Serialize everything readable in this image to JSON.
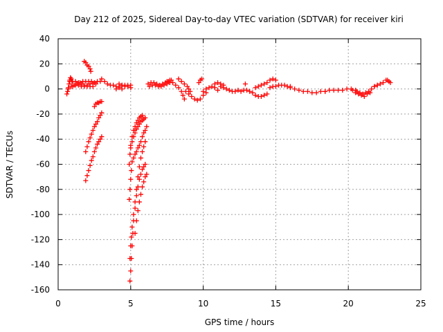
{
  "chart_data": {
    "type": "scatter",
    "title": "Day 212 of 2025, Sidereal Day-to-day VTEC variation (SDTVAR) for receiver kiri",
    "xlabel": "GPS time / hours",
    "ylabel": "SDTVAR / TECUs",
    "xlim": [
      0,
      25
    ],
    "ylim": [
      -160,
      40
    ],
    "xticks": [
      0,
      5,
      10,
      15,
      20,
      25
    ],
    "yticks": [
      -160,
      -140,
      -120,
      -100,
      -80,
      -60,
      -40,
      -20,
      0,
      20,
      40
    ],
    "grid": true,
    "marker": "plus",
    "color": "#ff0000",
    "series": [
      {
        "values": [
          [
            0.6,
            -4
          ],
          [
            0.65,
            -2
          ],
          [
            0.7,
            1
          ],
          [
            0.75,
            4
          ],
          [
            0.8,
            7
          ],
          [
            0.85,
            9
          ],
          [
            0.9,
            8
          ],
          [
            0.95,
            6
          ]
        ]
      },
      {
        "values": [
          [
            0.7,
            0
          ],
          [
            0.9,
            2
          ],
          [
            1.1,
            3
          ],
          [
            1.3,
            4
          ],
          [
            1.5,
            5
          ],
          [
            1.7,
            6
          ],
          [
            1.9,
            6
          ],
          [
            2.1,
            6
          ],
          [
            2.3,
            6
          ],
          [
            2.5,
            5
          ],
          [
            2.7,
            6
          ],
          [
            2.9,
            6
          ]
        ]
      },
      {
        "values": [
          [
            0.8,
            6
          ],
          [
            1.0,
            6
          ],
          [
            1.2,
            6
          ],
          [
            1.4,
            5
          ],
          [
            1.6,
            4
          ],
          [
            1.8,
            3
          ],
          [
            2.0,
            3
          ],
          [
            2.2,
            4
          ],
          [
            2.4,
            4
          ],
          [
            2.6,
            4
          ]
        ]
      },
      {
        "values": [
          [
            1.0,
            2
          ],
          [
            1.2,
            3
          ],
          [
            1.4,
            3
          ],
          [
            1.6,
            2
          ],
          [
            1.8,
            2
          ],
          [
            2.0,
            2
          ],
          [
            2.2,
            2
          ],
          [
            2.4,
            2
          ]
        ]
      },
      {
        "values": [
          [
            1.8,
            22
          ],
          [
            1.9,
            21
          ],
          [
            2.0,
            19
          ],
          [
            2.1,
            18
          ],
          [
            2.2,
            16
          ],
          [
            2.25,
            14
          ]
        ]
      },
      {
        "values": [
          [
            2.5,
            -14
          ],
          [
            2.6,
            -12
          ],
          [
            2.7,
            -11
          ],
          [
            2.8,
            -11
          ],
          [
            2.9,
            -10
          ],
          [
            3.0,
            -10
          ]
        ]
      },
      {
        "values": [
          [
            1.9,
            -73
          ],
          [
            2.0,
            -69
          ],
          [
            2.1,
            -65
          ],
          [
            2.2,
            -61
          ],
          [
            2.3,
            -57
          ],
          [
            2.4,
            -54
          ],
          [
            2.5,
            -50
          ],
          [
            2.6,
            -47
          ],
          [
            2.7,
            -44
          ],
          [
            2.8,
            -42
          ],
          [
            2.9,
            -40
          ],
          [
            3.0,
            -38
          ]
        ]
      },
      {
        "values": [
          [
            1.9,
            -50
          ],
          [
            2.0,
            -46
          ],
          [
            2.1,
            -42
          ],
          [
            2.2,
            -39
          ],
          [
            2.3,
            -36
          ],
          [
            2.4,
            -33
          ],
          [
            2.5,
            -30
          ],
          [
            2.6,
            -28
          ],
          [
            2.7,
            -26
          ],
          [
            2.8,
            -23
          ],
          [
            2.9,
            -21
          ],
          [
            3.0,
            -19
          ]
        ]
      },
      {
        "values": [
          [
            3.0,
            8
          ],
          [
            3.2,
            6
          ],
          [
            3.4,
            4
          ],
          [
            3.6,
            3
          ],
          [
            3.8,
            3
          ],
          [
            4.0,
            2
          ],
          [
            4.2,
            1
          ],
          [
            4.4,
            0
          ]
        ]
      },
      {
        "values": [
          [
            4.0,
            0
          ],
          [
            4.2,
            2
          ],
          [
            4.4,
            3
          ],
          [
            4.6,
            3
          ],
          [
            4.8,
            2
          ],
          [
            5.0,
            1
          ]
        ]
      },
      {
        "values": [
          [
            4.2,
            4
          ],
          [
            4.4,
            3
          ],
          [
            4.6,
            2
          ],
          [
            4.8,
            3
          ],
          [
            5.0,
            3
          ]
        ]
      },
      {
        "values": [
          [
            4.95,
            -153
          ],
          [
            5.0,
            -145
          ],
          [
            5.05,
            -135
          ],
          [
            5.1,
            -125
          ],
          [
            5.15,
            -115
          ],
          [
            5.2,
            -105
          ],
          [
            5.3,
            -95
          ],
          [
            5.4,
            -85
          ],
          [
            5.5,
            -78
          ],
          [
            5.6,
            -72
          ],
          [
            5.7,
            -68
          ],
          [
            5.8,
            -64
          ],
          [
            5.9,
            -62
          ],
          [
            6.0,
            -60
          ]
        ]
      },
      {
        "values": [
          [
            4.95,
            -135
          ],
          [
            5.0,
            -125
          ],
          [
            5.05,
            -118
          ],
          [
            5.1,
            -110
          ],
          [
            5.2,
            -100
          ],
          [
            5.3,
            -90
          ],
          [
            5.4,
            -80
          ],
          [
            5.5,
            -70
          ],
          [
            5.6,
            -62
          ],
          [
            5.7,
            -55
          ],
          [
            5.8,
            -50
          ],
          [
            5.9,
            -46
          ],
          [
            6.0,
            -42
          ]
        ]
      },
      {
        "values": [
          [
            5.3,
            -115
          ],
          [
            5.4,
            -105
          ],
          [
            5.5,
            -97
          ],
          [
            5.6,
            -90
          ],
          [
            5.7,
            -84
          ],
          [
            5.8,
            -78
          ],
          [
            5.9,
            -74
          ],
          [
            6.0,
            -70
          ],
          [
            6.1,
            -68
          ]
        ]
      },
      {
        "values": [
          [
            4.9,
            -88
          ],
          [
            4.95,
            -80
          ],
          [
            5.0,
            -72
          ],
          [
            5.05,
            -65
          ],
          [
            5.1,
            -58
          ],
          [
            5.2,
            -55
          ],
          [
            5.3,
            -52
          ],
          [
            5.4,
            -50
          ],
          [
            5.5,
            -47
          ],
          [
            5.6,
            -45
          ],
          [
            5.7,
            -42
          ],
          [
            5.8,
            -38
          ],
          [
            5.9,
            -35
          ],
          [
            6.0,
            -33
          ],
          [
            6.1,
            -30
          ]
        ]
      },
      {
        "values": [
          [
            4.9,
            -60
          ],
          [
            4.95,
            -52
          ],
          [
            5.0,
            -47
          ],
          [
            5.1,
            -42
          ],
          [
            5.2,
            -38
          ],
          [
            5.3,
            -35
          ],
          [
            5.4,
            -32
          ],
          [
            5.5,
            -30
          ],
          [
            5.6,
            -28
          ],
          [
            5.7,
            -26
          ],
          [
            5.8,
            -25
          ],
          [
            5.9,
            -24
          ],
          [
            6.0,
            -23
          ]
        ]
      },
      {
        "values": [
          [
            5.0,
            -45
          ],
          [
            5.1,
            -38
          ],
          [
            5.2,
            -33
          ],
          [
            5.3,
            -30
          ],
          [
            5.4,
            -27
          ],
          [
            5.5,
            -25
          ],
          [
            5.6,
            -23
          ],
          [
            5.7,
            -22
          ],
          [
            5.8,
            -21
          ]
        ]
      },
      {
        "values": [
          [
            6.2,
            4
          ],
          [
            6.4,
            5
          ],
          [
            6.6,
            5
          ],
          [
            6.8,
            4
          ],
          [
            7.0,
            3
          ],
          [
            7.2,
            4
          ],
          [
            7.4,
            5
          ],
          [
            7.6,
            6
          ],
          [
            7.8,
            7
          ]
        ]
      },
      {
        "values": [
          [
            6.3,
            2
          ],
          [
            6.5,
            3
          ],
          [
            6.7,
            3
          ],
          [
            6.9,
            2
          ],
          [
            7.1,
            2
          ],
          [
            7.3,
            3
          ],
          [
            7.5,
            4
          ],
          [
            7.7,
            5
          ]
        ]
      },
      {
        "values": [
          [
            7.5,
            6
          ],
          [
            7.7,
            7
          ],
          [
            7.9,
            5
          ],
          [
            8.1,
            3
          ],
          [
            8.3,
            1
          ],
          [
            8.5,
            -2
          ],
          [
            8.6,
            -5
          ],
          [
            8.7,
            -8
          ]
        ]
      },
      {
        "values": [
          [
            8.3,
            8
          ],
          [
            8.5,
            6
          ],
          [
            8.7,
            4
          ],
          [
            8.9,
            2
          ],
          [
            9.0,
            0
          ],
          [
            9.1,
            -2
          ]
        ]
      },
      {
        "values": [
          [
            8.8,
            -2
          ],
          [
            9.0,
            -4
          ],
          [
            9.2,
            -6
          ],
          [
            9.4,
            -8
          ],
          [
            9.6,
            -9
          ],
          [
            9.8,
            -8
          ],
          [
            10.0,
            -5
          ],
          [
            10.2,
            -3
          ]
        ]
      },
      {
        "values": [
          [
            9.7,
            5
          ],
          [
            9.8,
            7
          ],
          [
            9.9,
            8
          ]
        ]
      },
      {
        "values": [
          [
            10.0,
            -2
          ],
          [
            10.2,
            0
          ],
          [
            10.4,
            1
          ],
          [
            10.6,
            2
          ],
          [
            10.8,
            1
          ],
          [
            11.0,
            -1
          ]
        ]
      },
      {
        "values": [
          [
            10.8,
            4
          ],
          [
            11.0,
            5
          ],
          [
            11.2,
            4
          ],
          [
            11.4,
            3
          ]
        ]
      },
      {
        "values": [
          [
            11.2,
            2
          ],
          [
            11.4,
            1
          ],
          [
            11.6,
            0
          ],
          [
            11.8,
            -1
          ],
          [
            12.0,
            -2
          ],
          [
            12.2,
            -2
          ],
          [
            12.4,
            -1
          ]
        ]
      },
      {
        "values": [
          [
            12.6,
            -2
          ],
          [
            12.8,
            -1
          ],
          [
            13.0,
            -1
          ],
          [
            13.2,
            -2
          ],
          [
            13.4,
            -3
          ],
          [
            13.6,
            -5
          ],
          [
            13.8,
            -6
          ],
          [
            14.0,
            -6
          ],
          [
            14.2,
            -5
          ],
          [
            14.4,
            -4
          ]
        ]
      },
      {
        "values": [
          [
            12.9,
            4
          ]
        ]
      },
      {
        "values": [
          [
            13.6,
            1
          ],
          [
            13.8,
            2
          ],
          [
            14.0,
            3
          ],
          [
            14.2,
            4
          ],
          [
            14.4,
            5
          ],
          [
            14.6,
            7
          ],
          [
            14.8,
            8
          ],
          [
            15.0,
            7
          ]
        ]
      },
      {
        "values": [
          [
            14.6,
            1
          ],
          [
            14.8,
            2
          ],
          [
            15.0,
            2
          ],
          [
            15.2,
            3
          ],
          [
            15.4,
            3
          ],
          [
            15.6,
            3
          ],
          [
            15.8,
            2
          ],
          [
            16.0,
            2
          ]
        ]
      },
      {
        "values": [
          [
            16.0,
            1
          ],
          [
            16.3,
            0
          ],
          [
            16.6,
            -1
          ],
          [
            16.9,
            -2
          ],
          [
            17.2,
            -2
          ],
          [
            17.5,
            -3
          ],
          [
            17.8,
            -3
          ],
          [
            18.1,
            -2
          ],
          [
            18.4,
            -2
          ]
        ]
      },
      {
        "values": [
          [
            18.4,
            -2
          ],
          [
            18.7,
            -1
          ],
          [
            19.0,
            -1
          ],
          [
            19.3,
            -1
          ],
          [
            19.6,
            -1
          ],
          [
            19.9,
            0
          ],
          [
            20.2,
            0
          ],
          [
            20.5,
            -1
          ]
        ]
      },
      {
        "values": [
          [
            20.3,
            -1
          ],
          [
            20.5,
            -3
          ],
          [
            20.7,
            -4
          ],
          [
            20.9,
            -5
          ],
          [
            21.1,
            -6
          ],
          [
            21.3,
            -4
          ],
          [
            21.5,
            -3
          ]
        ]
      },
      {
        "values": [
          [
            20.6,
            -2
          ],
          [
            20.8,
            -3
          ],
          [
            21.0,
            -4
          ],
          [
            21.2,
            -3
          ],
          [
            21.4,
            -2
          ],
          [
            21.6,
            0
          ],
          [
            21.8,
            2
          ],
          [
            22.0,
            3
          ]
        ]
      },
      {
        "values": [
          [
            21.8,
            2
          ],
          [
            22.0,
            3
          ],
          [
            22.2,
            4
          ],
          [
            22.4,
            5
          ],
          [
            22.6,
            7
          ],
          [
            22.7,
            7
          ],
          [
            22.8,
            6
          ],
          [
            22.9,
            5
          ]
        ]
      }
    ]
  }
}
